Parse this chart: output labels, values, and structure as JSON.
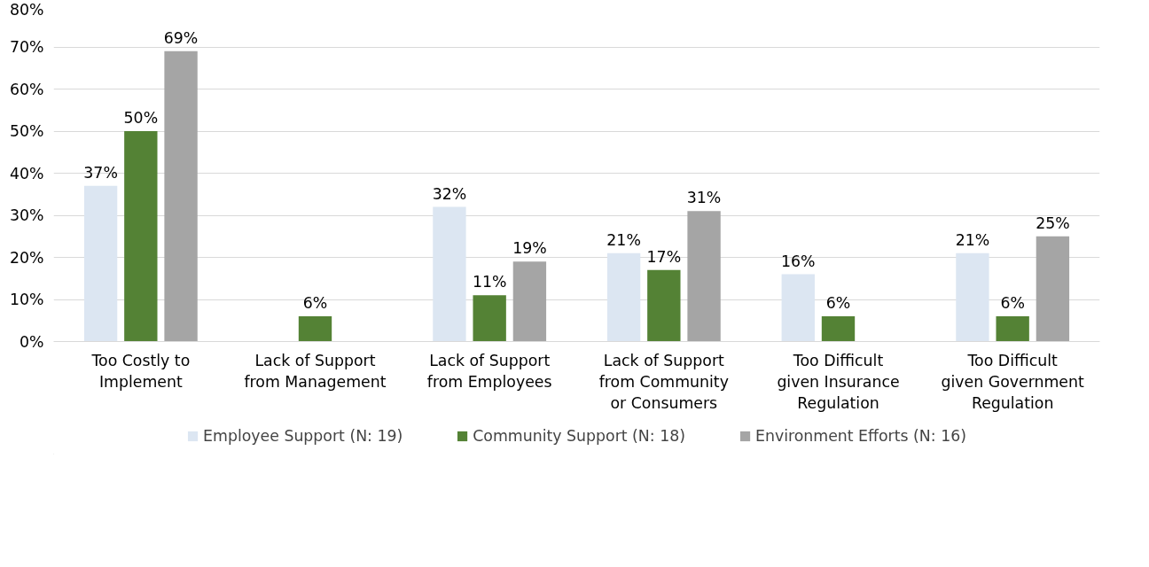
{
  "chart_data": {
    "type": "bar",
    "categories": [
      "Too Costly to Implement",
      "Lack of Support from Management",
      "Lack of Support from Employees",
      "Lack of Support from Community or Consumers",
      "Too Difficult given Insurance Regulation",
      "Too Difficult given Government Regulation"
    ],
    "series": [
      {
        "name": "Employee Support (N: 19)",
        "color": "#dce6f2",
        "values": [
          37,
          null,
          32,
          21,
          16,
          21
        ],
        "value_labels": [
          "37%",
          null,
          "32%",
          "21%",
          "16%",
          "21%"
        ]
      },
      {
        "name": "Community Support (N: 18)",
        "color": "#548235",
        "values": [
          50,
          6,
          11,
          17,
          6,
          6
        ],
        "value_labels": [
          "50%",
          "6%",
          "11%",
          "17%",
          "6%",
          "6%"
        ]
      },
      {
        "name": "Environment Efforts (N: 16)",
        "color": "#a5a5a5",
        "values": [
          69,
          null,
          19,
          31,
          null,
          25
        ],
        "value_labels": [
          "69%",
          null,
          "19%",
          "31%",
          null,
          "25%"
        ]
      }
    ],
    "ylim": [
      0,
      80
    ],
    "yticks": [
      {
        "value": 0,
        "label": "0%"
      },
      {
        "value": 10,
        "label": "10%"
      },
      {
        "value": 20,
        "label": "20%"
      },
      {
        "value": 30,
        "label": "30%"
      },
      {
        "value": 40,
        "label": "40%"
      },
      {
        "value": 50,
        "label": "50%"
      },
      {
        "value": 60,
        "label": "60%"
      },
      {
        "value": 70,
        "label": "70%"
      },
      {
        "value": 80,
        "label": "80%"
      }
    ],
    "grid": "y",
    "legend": "bottom"
  }
}
